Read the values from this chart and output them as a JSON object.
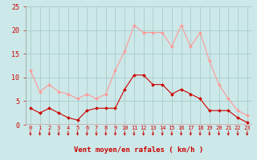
{
  "hours": [
    0,
    1,
    2,
    3,
    4,
    5,
    6,
    7,
    8,
    9,
    10,
    11,
    12,
    13,
    14,
    15,
    16,
    17,
    18,
    19,
    20,
    21,
    22,
    23
  ],
  "wind_avg": [
    3.5,
    2.5,
    3.5,
    2.5,
    1.5,
    1.0,
    3.0,
    3.5,
    3.5,
    3.5,
    7.5,
    10.5,
    10.5,
    8.5,
    8.5,
    6.5,
    7.5,
    6.5,
    5.5,
    3.0,
    3.0,
    3.0,
    1.5,
    0.5
  ],
  "wind_gust": [
    11.5,
    7.0,
    8.5,
    7.0,
    6.5,
    5.5,
    6.5,
    5.5,
    6.5,
    11.5,
    15.5,
    21.0,
    19.5,
    19.5,
    19.5,
    16.5,
    21.0,
    16.5,
    19.5,
    13.5,
    8.5,
    5.5,
    3.0,
    2.0
  ],
  "bg_color": "#cce8e8",
  "grid_color": "#aacccc",
  "line_avg_color": "#cc0000",
  "line_gust_color": "#ff9999",
  "xlabel": "Vent moyen/en rafales ( km/h )",
  "xlabel_color": "#cc0000",
  "tick_color": "#cc0000",
  "ylim": [
    0,
    25
  ],
  "yticks": [
    0,
    5,
    10,
    15,
    20,
    25
  ],
  "ytick_labels": [
    "0",
    "5",
    "10",
    "15",
    "20",
    "25"
  ]
}
